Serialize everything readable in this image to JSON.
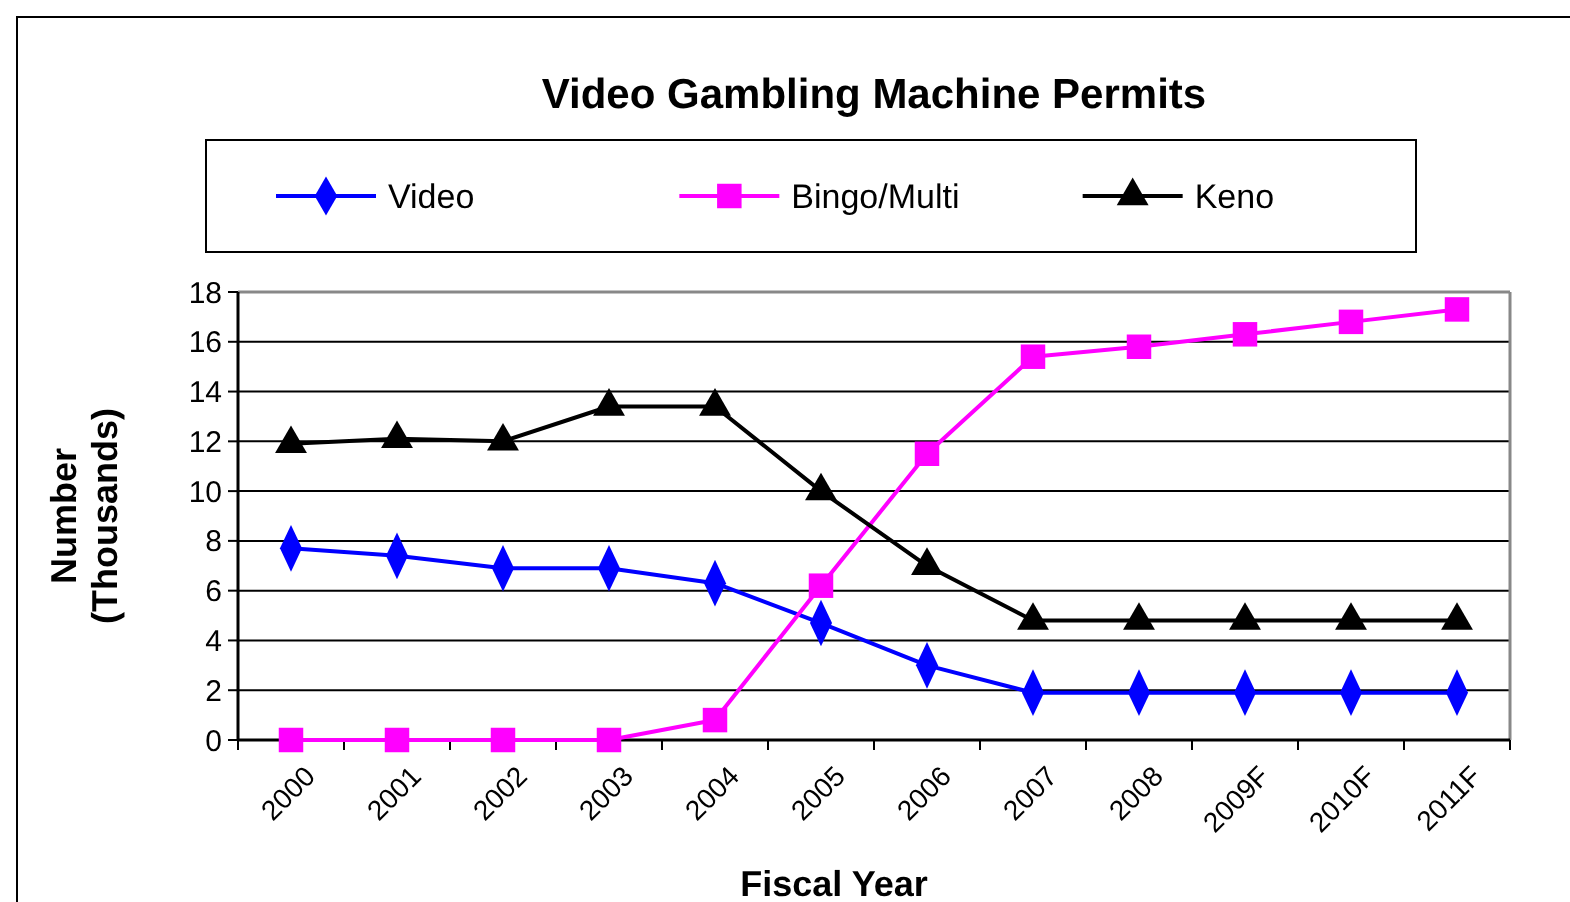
{
  "chart_data": {
    "type": "line",
    "title": "Video Gambling Machine Permits",
    "xlabel": "Fiscal Year",
    "ylabel": "Number (Thousands)",
    "categories": [
      "2000",
      "2001",
      "2002",
      "2003",
      "2004",
      "2005",
      "2006",
      "2007",
      "2008",
      "2009F",
      "2010F",
      "2011F"
    ],
    "series": [
      {
        "name": "Video",
        "color": "#0000ff",
        "marker": "diamond",
        "values": [
          7.7,
          7.4,
          6.9,
          6.9,
          6.3,
          4.7,
          3.0,
          1.9,
          1.9,
          1.9,
          1.9,
          1.9
        ]
      },
      {
        "name": "Bingo/Multi",
        "color": "#ff00ff",
        "marker": "square",
        "values": [
          0,
          0,
          0,
          0,
          0.8,
          6.2,
          11.5,
          15.4,
          15.8,
          16.3,
          16.8,
          17.3
        ]
      },
      {
        "name": "Keno",
        "color": "#000000",
        "marker": "triangle",
        "values": [
          11.9,
          12.1,
          12.0,
          13.4,
          13.4,
          10.0,
          7.0,
          4.8,
          4.8,
          4.8,
          4.8,
          4.8
        ]
      }
    ],
    "ylim": [
      0,
      18
    ],
    "yticks": [
      0,
      2,
      4,
      6,
      8,
      10,
      12,
      14,
      16,
      18
    ],
    "grid": "y",
    "legend": "top",
    "line_style": "solid"
  }
}
